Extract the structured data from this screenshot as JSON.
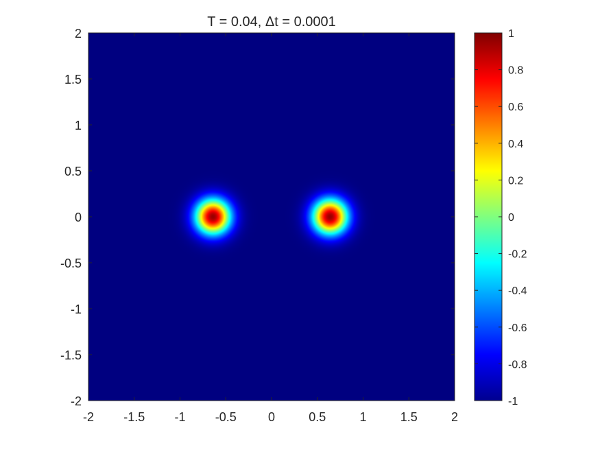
{
  "chart_data": {
    "type": "heatmap",
    "title": "T = 0.04,  Δt = 0.0001",
    "xlabel": "",
    "ylabel": "",
    "xlim": [
      -2,
      2
    ],
    "ylim": [
      -2,
      2
    ],
    "x_ticks": [
      "-2",
      "-1.5",
      "-1",
      "-0.5",
      "0",
      "0.5",
      "1",
      "1.5",
      "2"
    ],
    "y_ticks": [
      "2",
      "1.5",
      "1",
      "0.5",
      "0",
      "-0.5",
      "-1",
      "-1.5",
      "-2"
    ],
    "background_value": -1,
    "blobs": [
      {
        "cx": -0.64,
        "cy": 0.0,
        "peak": 0.95,
        "radius": 0.24
      },
      {
        "cx": 0.64,
        "cy": 0.0,
        "peak": 0.95,
        "radius": 0.24
      }
    ],
    "colorbar": {
      "colormap": "jet",
      "clim": [
        -1,
        1
      ],
      "ticks": [
        "1",
        "0.8",
        "0.6",
        "0.4",
        "0.2",
        "0",
        "-0.2",
        "-0.4",
        "-0.6",
        "-0.8",
        "-1"
      ]
    },
    "grid": false
  }
}
